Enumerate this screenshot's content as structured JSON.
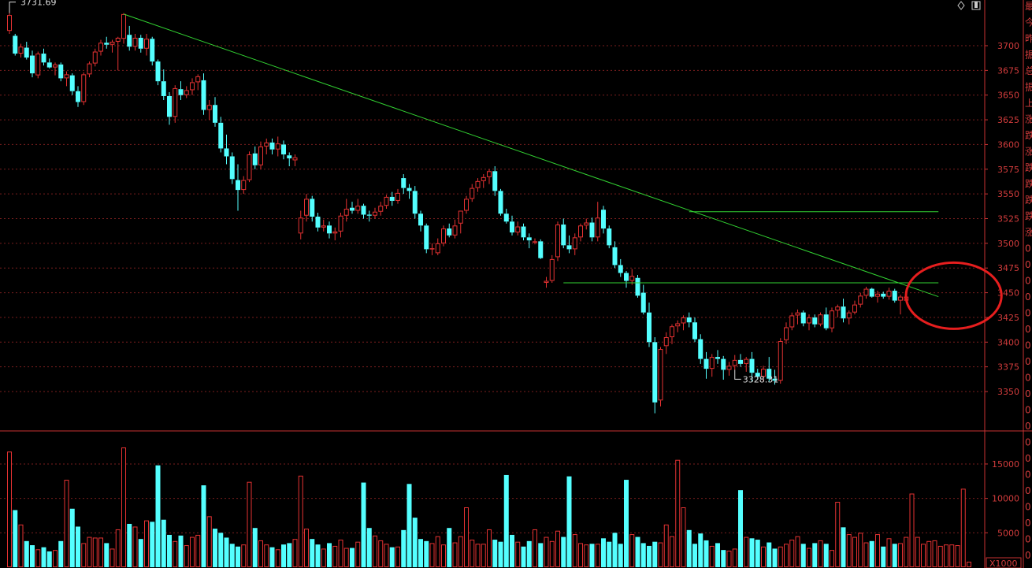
{
  "chart_data": {
    "type": "candlestick",
    "price_axis": {
      "ylim": [
        3305,
        3740
      ],
      "ticks": [
        3350,
        3375,
        3400,
        3425,
        3450,
        3475,
        3500,
        3525,
        3550,
        3575,
        3600,
        3625,
        3650,
        3675,
        3700
      ]
    },
    "annotations": {
      "high_label": "3731.69",
      "low_label": "3328.31"
    },
    "volume_axis": {
      "ylim": [
        0,
        19500
      ],
      "ticks": [
        5000,
        10000,
        15000
      ],
      "unit_label": "X1000"
    },
    "candles": [
      [
        3715,
        3733,
        3712,
        3731
      ],
      [
        3710,
        3712,
        3690,
        3692
      ],
      [
        3692,
        3702,
        3688,
        3699
      ],
      [
        3698,
        3704,
        3686,
        3688
      ],
      [
        3690,
        3695,
        3668,
        3672
      ],
      [
        3670,
        3694,
        3667,
        3692
      ],
      [
        3692,
        3697,
        3680,
        3683
      ],
      [
        3683,
        3687,
        3677,
        3678
      ],
      [
        3678,
        3683,
        3670,
        3681
      ],
      [
        3681,
        3683,
        3664,
        3667
      ],
      [
        3667,
        3674,
        3659,
        3671
      ],
      [
        3670,
        3672,
        3650,
        3654
      ],
      [
        3654,
        3659,
        3638,
        3643
      ],
      [
        3643,
        3673,
        3640,
        3671
      ],
      [
        3671,
        3684,
        3668,
        3682
      ],
      [
        3682,
        3697,
        3679,
        3694
      ],
      [
        3694,
        3706,
        3690,
        3703
      ],
      [
        3703,
        3709,
        3697,
        3701
      ],
      [
        3701,
        3706,
        3693,
        3704
      ],
      [
        3704,
        3709,
        3675,
        3708
      ],
      [
        3707,
        3733,
        3702,
        3732
      ],
      [
        3711,
        3720,
        3695,
        3699
      ],
      [
        3699,
        3712,
        3695,
        3708
      ],
      [
        3708,
        3711,
        3693,
        3697
      ],
      [
        3697,
        3712,
        3690,
        3707
      ],
      [
        3707,
        3709,
        3680,
        3684
      ],
      [
        3684,
        3686,
        3660,
        3664
      ],
      [
        3664,
        3676,
        3645,
        3649
      ],
      [
        3649,
        3653,
        3620,
        3628
      ],
      [
        3628,
        3660,
        3622,
        3657
      ],
      [
        3656,
        3664,
        3645,
        3650
      ],
      [
        3650,
        3659,
        3647,
        3655
      ],
      [
        3655,
        3667,
        3650,
        3663
      ],
      [
        3663,
        3671,
        3655,
        3669
      ],
      [
        3665,
        3672,
        3630,
        3635
      ],
      [
        3635,
        3645,
        3625,
        3640
      ],
      [
        3640,
        3648,
        3618,
        3622
      ],
      [
        3622,
        3628,
        3592,
        3596
      ],
      [
        3596,
        3610,
        3580,
        3588
      ],
      [
        3588,
        3592,
        3560,
        3565
      ],
      [
        3564,
        3580,
        3533,
        3554
      ],
      [
        3554,
        3568,
        3550,
        3564
      ],
      [
        3564,
        3593,
        3562,
        3590
      ],
      [
        3591,
        3598,
        3575,
        3579
      ],
      [
        3579,
        3603,
        3575,
        3598
      ],
      [
        3598,
        3606,
        3590,
        3602
      ],
      [
        3602,
        3606,
        3590,
        3595
      ],
      [
        3595,
        3608,
        3588,
        3601
      ],
      [
        3600,
        3604,
        3585,
        3590
      ],
      [
        3589,
        3592,
        3578,
        3586
      ],
      [
        3584,
        3590,
        3578,
        3587
      ],
      [
        3510,
        3533,
        3504,
        3526
      ],
      [
        3528,
        3550,
        3522,
        3545
      ],
      [
        3545,
        3548,
        3522,
        3527
      ],
      [
        3527,
        3531,
        3512,
        3516
      ],
      [
        3516,
        3524,
        3512,
        3518
      ],
      [
        3518,
        3522,
        3505,
        3510
      ],
      [
        3510,
        3516,
        3503,
        3512
      ],
      [
        3512,
        3531,
        3506,
        3528
      ],
      [
        3528,
        3545,
        3522,
        3535
      ],
      [
        3536,
        3542,
        3530,
        3533
      ],
      [
        3533,
        3545,
        3530,
        3538
      ],
      [
        3538,
        3540,
        3525,
        3529
      ],
      [
        3529,
        3533,
        3522,
        3528
      ],
      [
        3528,
        3536,
        3525,
        3532
      ],
      [
        3532,
        3542,
        3528,
        3538
      ],
      [
        3538,
        3549,
        3535,
        3547
      ],
      [
        3547,
        3552,
        3538,
        3543
      ],
      [
        3543,
        3555,
        3540,
        3551
      ],
      [
        3566,
        3570,
        3550,
        3556
      ],
      [
        3556,
        3560,
        3545,
        3553
      ],
      [
        3553,
        3558,
        3525,
        3530
      ],
      [
        3530,
        3533,
        3512,
        3518
      ],
      [
        3518,
        3520,
        3490,
        3494
      ],
      [
        3494,
        3500,
        3488,
        3495
      ],
      [
        3490,
        3505,
        3488,
        3500
      ],
      [
        3500,
        3518,
        3497,
        3515
      ],
      [
        3515,
        3520,
        3506,
        3508
      ],
      [
        3508,
        3524,
        3505,
        3518
      ],
      [
        3520,
        3532,
        3510,
        3533
      ],
      [
        3533,
        3548,
        3530,
        3545
      ],
      [
        3545,
        3560,
        3542,
        3556
      ],
      [
        3556,
        3566,
        3552,
        3563
      ],
      [
        3563,
        3570,
        3556,
        3567
      ],
      [
        3567,
        3575,
        3560,
        3573
      ],
      [
        3573,
        3578,
        3548,
        3553
      ],
      [
        3553,
        3555,
        3528,
        3530
      ],
      [
        3530,
        3535,
        3520,
        3522
      ],
      [
        3522,
        3528,
        3508,
        3511
      ],
      [
        3511,
        3522,
        3508,
        3517
      ],
      [
        3517,
        3520,
        3503,
        3506
      ],
      [
        3506,
        3510,
        3495,
        3503
      ],
      [
        3502,
        3505,
        3499,
        3502
      ],
      [
        3502,
        3504,
        3484,
        3485
      ],
      [
        3460,
        3466,
        3455,
        3462
      ],
      [
        3462,
        3488,
        3460,
        3484
      ],
      [
        3486,
        3522,
        3482,
        3519
      ],
      [
        3519,
        3525,
        3495,
        3498
      ],
      [
        3498,
        3508,
        3490,
        3494
      ],
      [
        3494,
        3510,
        3488,
        3506
      ],
      [
        3506,
        3520,
        3502,
        3518
      ],
      [
        3518,
        3525,
        3514,
        3521
      ],
      [
        3521,
        3526,
        3502,
        3506
      ],
      [
        3506,
        3542,
        3502,
        3526
      ],
      [
        3534,
        3538,
        3510,
        3515
      ],
      [
        3515,
        3518,
        3495,
        3498
      ],
      [
        3496,
        3502,
        3475,
        3478
      ],
      [
        3478,
        3484,
        3466,
        3470
      ],
      [
        3470,
        3472,
        3455,
        3462
      ],
      [
        3462,
        3474,
        3458,
        3467
      ],
      [
        3465,
        3468,
        3445,
        3447
      ],
      [
        3450,
        3458,
        3428,
        3430
      ],
      [
        3430,
        3440,
        3395,
        3400
      ],
      [
        3400,
        3405,
        3328,
        3339
      ],
      [
        3341,
        3395,
        3335,
        3393
      ],
      [
        3396,
        3410,
        3388,
        3405
      ],
      [
        3405,
        3418,
        3398,
        3416
      ],
      [
        3416,
        3422,
        3410,
        3419
      ],
      [
        3419,
        3427,
        3412,
        3425
      ],
      [
        3425,
        3430,
        3415,
        3420
      ],
      [
        3420,
        3425,
        3400,
        3403
      ],
      [
        3403,
        3408,
        3378,
        3383
      ],
      [
        3383,
        3390,
        3363,
        3373
      ],
      [
        3373,
        3388,
        3365,
        3385
      ],
      [
        3385,
        3392,
        3378,
        3383
      ],
      [
        3383,
        3386,
        3362,
        3372
      ],
      [
        3372,
        3380,
        3366,
        3376
      ],
      [
        3376,
        3387,
        3372,
        3382
      ],
      [
        3382,
        3388,
        3375,
        3378
      ],
      [
        3378,
        3385,
        3370,
        3383
      ],
      [
        3383,
        3390,
        3360,
        3369
      ],
      [
        3369,
        3373,
        3362,
        3365
      ],
      [
        3365,
        3376,
        3360,
        3373
      ],
      [
        3373,
        3385,
        3360,
        3363
      ],
      [
        3363,
        3372,
        3357,
        3361
      ],
      [
        3361,
        3404,
        3358,
        3401
      ],
      [
        3402,
        3420,
        3398,
        3415
      ],
      [
        3415,
        3430,
        3412,
        3427
      ],
      [
        3427,
        3433,
        3418,
        3430
      ],
      [
        3430,
        3432,
        3416,
        3419
      ],
      [
        3419,
        3428,
        3412,
        3425
      ],
      [
        3425,
        3428,
        3415,
        3418
      ],
      [
        3418,
        3430,
        3416,
        3428
      ],
      [
        3428,
        3435,
        3412,
        3414
      ],
      [
        3414,
        3435,
        3410,
        3432
      ],
      [
        3432,
        3438,
        3425,
        3436
      ],
      [
        3436,
        3444,
        3420,
        3424
      ],
      [
        3424,
        3432,
        3418,
        3430
      ],
      [
        3430,
        3442,
        3428,
        3438
      ],
      [
        3438,
        3450,
        3435,
        3447
      ],
      [
        3447,
        3456,
        3444,
        3454
      ],
      [
        3454,
        3455,
        3445,
        3446
      ],
      [
        3446,
        3452,
        3440,
        3449
      ],
      [
        3449,
        3451,
        3444,
        3446
      ],
      [
        3446,
        3455,
        3443,
        3452
      ],
      [
        3452,
        3454,
        3440,
        3442
      ],
      [
        3442,
        3448,
        3428,
        3446
      ],
      [
        3442,
        3448,
        3440,
        3446
      ]
    ],
    "volumes": [
      16800,
      8300,
      6200,
      3800,
      3200,
      2600,
      2900,
      2300,
      2500,
      3800,
      12700,
      8500,
      5900,
      3500,
      4400,
      4300,
      4300,
      3500,
      2700,
      5500,
      17400,
      6300,
      5900,
      4100,
      6800,
      6600,
      14800,
      6900,
      4700,
      3800,
      4600,
      3200,
      4400,
      4700,
      11900,
      7400,
      5600,
      5000,
      4300,
      3400,
      3000,
      3300,
      12400,
      5700,
      3900,
      3300,
      2900,
      2600,
      3300,
      3500,
      4100,
      13300,
      5600,
      4100,
      3300,
      2700,
      3500,
      3100,
      4000,
      2800,
      2800,
      3700,
      12300,
      5700,
      4600,
      3900,
      3400,
      2900,
      3000,
      5400,
      12100,
      7200,
      4100,
      3800,
      3500,
      4500,
      3300,
      5700,
      3600,
      4500,
      8700,
      4000,
      3400,
      3400,
      5500,
      4000,
      3700,
      13400,
      4700,
      3700,
      3000,
      3800,
      5500,
      3500,
      4400,
      3800,
      5300,
      4400,
      13200,
      4800,
      3500,
      3300,
      3400,
      3400,
      4200,
      3700,
      5000,
      3400,
      12700,
      4800,
      4400,
      3500,
      3100,
      3700,
      3600,
      6200,
      4500,
      15600,
      8700,
      5400,
      3400,
      4900,
      3900,
      3100,
      3500,
      2500,
      2400,
      2700,
      11200,
      4400,
      4200,
      4000,
      3000,
      3600,
      2700,
      3000,
      3400,
      4000,
      4500,
      3400,
      2800,
      3500,
      3900,
      3400,
      2500,
      9500,
      5800,
      4800,
      4400,
      5000,
      3600,
      3800,
      4800,
      3000,
      4200,
      3400,
      3500,
      4400,
      10700,
      4400,
      3400,
      3800,
      3900,
      3100,
      3300,
      3300,
      3200,
      11400,
      800
    ],
    "trendlines": [
      {
        "from": [
          20,
          3732
        ],
        "to": [
          161,
          3446
        ]
      },
      {
        "from": [
          119,
          3532
        ],
        "to": [
          161,
          3532
        ]
      },
      {
        "from": [
          97,
          3460
        ],
        "to": [
          161,
          3460
        ]
      }
    ],
    "side_panel_text": [
      "最",
      "今",
      "昨",
      "振",
      "总",
      "振",
      "上",
      "涨",
      "跌",
      "涨",
      "跌",
      "跌",
      "跌",
      "跌",
      "涨",
      "0",
      "0",
      "0",
      "0",
      "0",
      "0",
      "0",
      "0",
      "0",
      "0",
      "0",
      "0",
      "0",
      "0",
      "0",
      "0",
      "0",
      "0",
      "0",
      "0"
    ],
    "colors": {
      "background": "#000000",
      "up": "#e63232",
      "down": "#54ffff",
      "axis": "#c83232",
      "grid": "#7a1e1e",
      "trendline": "#32d232",
      "highlight_circle": "#e61e1e"
    }
  }
}
